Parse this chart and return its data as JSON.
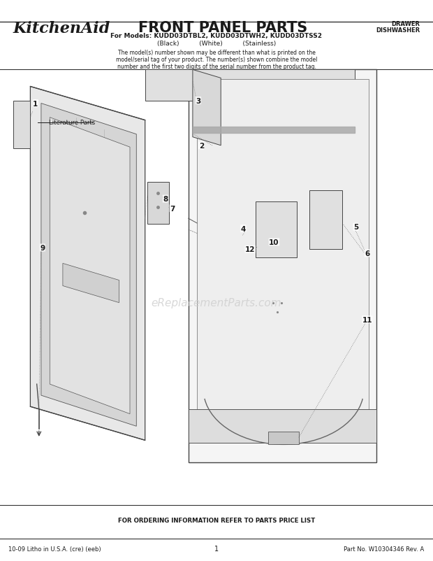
{
  "title_brand": "KitchenAid",
  "title_main": "FRONT PANEL PARTS",
  "subtitle_models": "For Models: KUDD03DTBL2, KUDD03DTWH2, KUDD03DTSS2",
  "subtitle_colors": "(Black)          (White)          (Stainless)",
  "body_text": "The model(s) number shown may be different than what is printed on the\nmodel/serial tag of your product. The number(s) shown combine the model\nnumber and the first two digits of the serial number from the product tag.",
  "top_right_line1": "DRAWER",
  "top_right_line2": "DISHWASHER",
  "watermark": "eReplacementParts.com",
  "footer_center": "FOR ORDERING INFORMATION REFER TO PARTS PRICE LIST",
  "footer_left": "10-09 Litho in U.S.A. (cre) (eeb)",
  "footer_mid": "1",
  "footer_right": "Part No. W10304346 Rev. A",
  "bg_color": "#ffffff",
  "text_color": "#1a1a1a",
  "diagram_color": "#888888",
  "watermark_color": "#cccccc"
}
